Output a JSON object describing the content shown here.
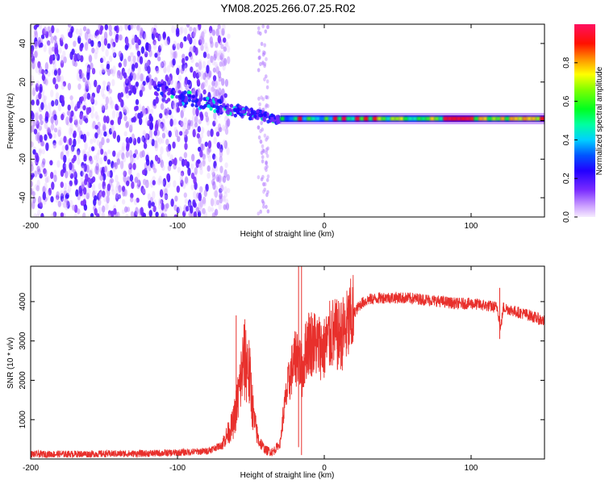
{
  "title": "YM08.2025.266.07.25.R02",
  "chart_data": [
    {
      "type": "heatmap",
      "title": "YM08.2025.266.07.25.R02",
      "xlabel": "Height of straight line (km)",
      "ylabel": "Frequency (Hz)",
      "xlim": [
        -200,
        150
      ],
      "ylim": [
        -50,
        50
      ],
      "x_ticks": [
        -200,
        -100,
        0,
        100
      ],
      "y_ticks": [
        -40,
        -20,
        0,
        20,
        40
      ],
      "colorbar": {
        "label": "Normalized spectral amplitude",
        "range": [
          0,
          1
        ],
        "ticks": [
          0.0,
          0.2,
          0.4,
          0.6,
          0.8
        ]
      },
      "features": [
        {
          "name": "broadband noise",
          "x_range": [
            -200,
            -65
          ],
          "y_range": [
            -50,
            50
          ],
          "amplitude": 0.15
        },
        {
          "name": "faint vertical stripe",
          "x_range": [
            -45,
            -38
          ],
          "y_range": [
            -50,
            50
          ],
          "amplitude": 0.05
        },
        {
          "name": "descending signal",
          "x_range": [
            -115,
            -30
          ],
          "y_range": [
            15,
            0
          ],
          "amplitude": 0.3
        },
        {
          "name": "steady narrowband tone",
          "x_range": [
            -30,
            150
          ],
          "y_center": 1,
          "amplitude": 0.75
        }
      ]
    },
    {
      "type": "line",
      "xlabel": "Height of straight line (km)",
      "ylabel": "SNR (10 * v/v)",
      "xlim": [
        -200,
        150
      ],
      "ylim": [
        0,
        4900
      ],
      "x_ticks": [
        -200,
        -100,
        0,
        100
      ],
      "y_ticks": [
        1000,
        2000,
        3000,
        4000
      ],
      "series": [
        {
          "name": "SNR",
          "color": "#e8302c",
          "x": [
            -200,
            -150,
            -120,
            -100,
            -80,
            -70,
            -62,
            -58,
            -55,
            -52,
            -50,
            -48,
            -45,
            -40,
            -35,
            -30,
            -28,
            -25,
            -22,
            -20,
            -18,
            -15,
            -12,
            -10,
            -5,
            0,
            5,
            10,
            15,
            20,
            25,
            30,
            40,
            50,
            60,
            70,
            80,
            90,
            100,
            110,
            118,
            120,
            122,
            130,
            140,
            150
          ],
          "values": [
            120,
            130,
            140,
            160,
            200,
            350,
            900,
            1700,
            2500,
            2400,
            1800,
            1000,
            500,
            220,
            180,
            400,
            1100,
            1800,
            2300,
            2500,
            2700,
            2200,
            2900,
            3000,
            2900,
            2800,
            3200,
            3100,
            3300,
            3700,
            3950,
            4050,
            4100,
            4100,
            4080,
            4050,
            4000,
            3950,
            3950,
            3900,
            3850,
            3300,
            3850,
            3750,
            3650,
            3500
          ],
          "spikes": [
            {
              "x": -17.5,
              "values": [
                4900,
                300
              ]
            },
            {
              "x": -15.5,
              "values": [
                4900,
                100
              ]
            },
            {
              "x": -60,
              "values": [
                3650
              ]
            },
            {
              "x": 119.5,
              "values": [
                4350,
                3050
              ]
            }
          ]
        }
      ]
    }
  ]
}
